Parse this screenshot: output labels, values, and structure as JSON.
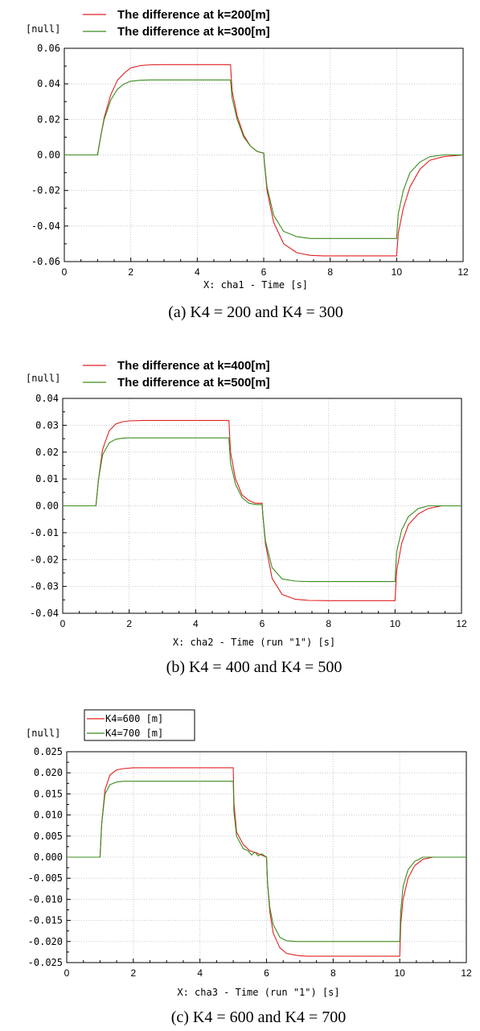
{
  "colors": {
    "series_a": "#e02020",
    "series_b": "#3a8c1e",
    "grid": "#c8c8c8",
    "axis": "#000000"
  },
  "chart_data": [
    {
      "type": "line",
      "ylabel": "[null]",
      "xlabel": "X: cha1 - Time [s]",
      "caption": "(a) K4 = 200 and K4 = 300",
      "legend_style": "plain",
      "xlim": [
        0,
        12
      ],
      "ylim": [
        -0.06,
        0.06
      ],
      "xticks": [
        "0",
        "2",
        "4",
        "6",
        "8",
        "10",
        "12"
      ],
      "yticks": [
        "0.06",
        "0.04",
        "0.02",
        "0.00",
        "-0.02",
        "-0.04",
        "-0.06"
      ],
      "grid": true,
      "series": [
        {
          "name": "The difference at k=200[m]",
          "color": "#e02020",
          "x": [
            0,
            1.0,
            1.1,
            1.2,
            1.4,
            1.6,
            1.8,
            2.0,
            2.3,
            2.6,
            3.0,
            5.0,
            5.05,
            5.2,
            5.4,
            5.6,
            5.8,
            6.0,
            6.02,
            6.1,
            6.3,
            6.6,
            7.0,
            7.4,
            7.8,
            10.0,
            10.05,
            10.2,
            10.4,
            10.7,
            11.0,
            11.4,
            12.0
          ],
          "y": [
            0,
            0,
            0.011,
            0.021,
            0.034,
            0.042,
            0.046,
            0.049,
            0.0503,
            0.0507,
            0.0508,
            0.0508,
            0.036,
            0.022,
            0.011,
            0.005,
            0.002,
            0.001,
            -0.004,
            -0.02,
            -0.038,
            -0.05,
            -0.055,
            -0.0565,
            -0.0568,
            -0.0568,
            -0.044,
            -0.03,
            -0.018,
            -0.008,
            -0.003,
            -0.001,
            0
          ]
        },
        {
          "name": "The difference at k=300[m]",
          "color": "#3a8c1e",
          "x": [
            0,
            1.0,
            1.1,
            1.2,
            1.4,
            1.6,
            1.8,
            2.0,
            2.3,
            2.6,
            3.0,
            5.0,
            5.05,
            5.2,
            5.4,
            5.6,
            5.8,
            6.0,
            6.02,
            6.1,
            6.3,
            6.6,
            7.0,
            7.4,
            7.8,
            10.0,
            10.05,
            10.2,
            10.4,
            10.7,
            11.0,
            11.4,
            12.0
          ],
          "y": [
            0,
            0,
            0.011,
            0.02,
            0.031,
            0.037,
            0.04,
            0.0415,
            0.042,
            0.0422,
            0.0422,
            0.0422,
            0.032,
            0.02,
            0.01,
            0.005,
            0.002,
            0.001,
            -0.004,
            -0.018,
            -0.034,
            -0.043,
            -0.046,
            -0.047,
            -0.047,
            -0.047,
            -0.033,
            -0.02,
            -0.01,
            -0.004,
            -0.001,
            0,
            0
          ]
        }
      ]
    },
    {
      "type": "line",
      "ylabel": "[null]",
      "xlabel": "X: cha2 - Time (run \"1\") [s]",
      "caption": "(b) K4 = 400 and K4 = 500",
      "legend_style": "plain",
      "xlim": [
        0,
        12
      ],
      "ylim": [
        -0.04,
        0.04
      ],
      "xticks": [
        "0",
        "2",
        "4",
        "6",
        "8",
        "10",
        "12"
      ],
      "yticks": [
        "0.04",
        "0.03",
        "0.02",
        "0.01",
        "0.00",
        "-0.01",
        "-0.02",
        "-0.03",
        "-0.04"
      ],
      "grid": true,
      "series": [
        {
          "name": "The difference at k=400[m]",
          "color": "#e02020",
          "x": [
            0,
            1.0,
            1.08,
            1.2,
            1.4,
            1.6,
            1.8,
            2.0,
            2.4,
            3.0,
            5.0,
            5.05,
            5.2,
            5.4,
            5.6,
            5.8,
            6.0,
            6.02,
            6.1,
            6.3,
            6.6,
            7.0,
            7.4,
            8.0,
            10.0,
            10.05,
            10.2,
            10.4,
            10.7,
            11.0,
            11.4,
            12.0
          ],
          "y": [
            0,
            0,
            0.01,
            0.021,
            0.028,
            0.0305,
            0.0313,
            0.0316,
            0.0318,
            0.0318,
            0.0318,
            0.02,
            0.01,
            0.004,
            0.002,
            0.001,
            0.001,
            -0.003,
            -0.014,
            -0.027,
            -0.033,
            -0.0348,
            -0.0352,
            -0.0353,
            -0.0353,
            -0.024,
            -0.014,
            -0.007,
            -0.003,
            -0.001,
            0,
            0
          ]
        },
        {
          "name": "The difference at k=500[m]",
          "color": "#3a8c1e",
          "x": [
            0,
            1.0,
            1.08,
            1.2,
            1.4,
            1.6,
            1.8,
            2.0,
            2.4,
            3.0,
            5.0,
            5.05,
            5.2,
            5.4,
            5.6,
            5.8,
            6.0,
            6.02,
            6.1,
            6.3,
            6.6,
            7.0,
            7.4,
            8.0,
            10.0,
            10.05,
            10.2,
            10.4,
            10.7,
            11.0,
            11.4,
            12.0
          ],
          "y": [
            0,
            0,
            0.01,
            0.019,
            0.0235,
            0.0248,
            0.0252,
            0.0253,
            0.0253,
            0.0253,
            0.0253,
            0.016,
            0.008,
            0.003,
            0.001,
            0.0005,
            0.0005,
            -0.003,
            -0.013,
            -0.023,
            -0.0272,
            -0.028,
            -0.0282,
            -0.0282,
            -0.0282,
            -0.017,
            -0.009,
            -0.004,
            -0.001,
            0,
            0,
            0
          ]
        }
      ]
    },
    {
      "type": "line",
      "ylabel": "[null]",
      "xlabel": "X: cha3 - Time (run \"1\") [s]",
      "caption": "(c) K4 = 600 and K4 = 700",
      "legend_style": "boxed",
      "xlim": [
        0,
        12
      ],
      "ylim": [
        -0.025,
        0.025
      ],
      "xticks": [
        "0",
        "2",
        "4",
        "6",
        "8",
        "10",
        "12"
      ],
      "yticks": [
        "0.025",
        "0.020",
        "0.015",
        "0.010",
        "0.005",
        "0.000",
        "-0.005",
        "-0.010",
        "-0.015",
        "-0.020",
        "-0.025"
      ],
      "grid": true,
      "series": [
        {
          "name": "K4=600   [m]",
          "color": "#e02020",
          "x": [
            0,
            1.0,
            1.05,
            1.15,
            1.3,
            1.5,
            1.7,
            2.0,
            3.0,
            5.0,
            5.02,
            5.1,
            5.3,
            5.5,
            5.7,
            5.85,
            6.0,
            6.03,
            6.1,
            6.2,
            6.4,
            6.6,
            6.9,
            7.2,
            10.0,
            10.03,
            10.1,
            10.25,
            10.45,
            10.7,
            11.0,
            12.0
          ],
          "y": [
            0,
            0,
            0.008,
            0.016,
            0.0195,
            0.0207,
            0.021,
            0.0212,
            0.0212,
            0.0212,
            0.013,
            0.006,
            0.003,
            0.0015,
            0.001,
            0.0005,
            0,
            -0.006,
            -0.013,
            -0.018,
            -0.0215,
            -0.0228,
            -0.0233,
            -0.0235,
            -0.0235,
            -0.016,
            -0.01,
            -0.005,
            -0.002,
            -0.0005,
            0,
            0
          ]
        },
        {
          "name": "K4=700   [m]",
          "color": "#3a8c1e",
          "x": [
            0,
            1.0,
            1.05,
            1.15,
            1.3,
            1.5,
            1.7,
            2.0,
            3.0,
            5.0,
            5.02,
            5.1,
            5.3,
            5.45,
            5.55,
            5.65,
            5.75,
            5.85,
            6.0,
            6.03,
            6.1,
            6.2,
            6.4,
            6.6,
            6.9,
            7.2,
            10.0,
            10.03,
            10.1,
            10.25,
            10.45,
            10.7,
            11.0,
            12.0
          ],
          "y": [
            0,
            0,
            0.008,
            0.015,
            0.0172,
            0.0178,
            0.018,
            0.018,
            0.018,
            0.018,
            0.011,
            0.005,
            0.002,
            0.0015,
            0.0005,
            0.0012,
            0.0003,
            0.0008,
            0,
            -0.006,
            -0.012,
            -0.016,
            -0.019,
            -0.0198,
            -0.02,
            -0.02,
            -0.02,
            -0.013,
            -0.007,
            -0.003,
            -0.001,
            0,
            0,
            0
          ]
        }
      ]
    }
  ]
}
